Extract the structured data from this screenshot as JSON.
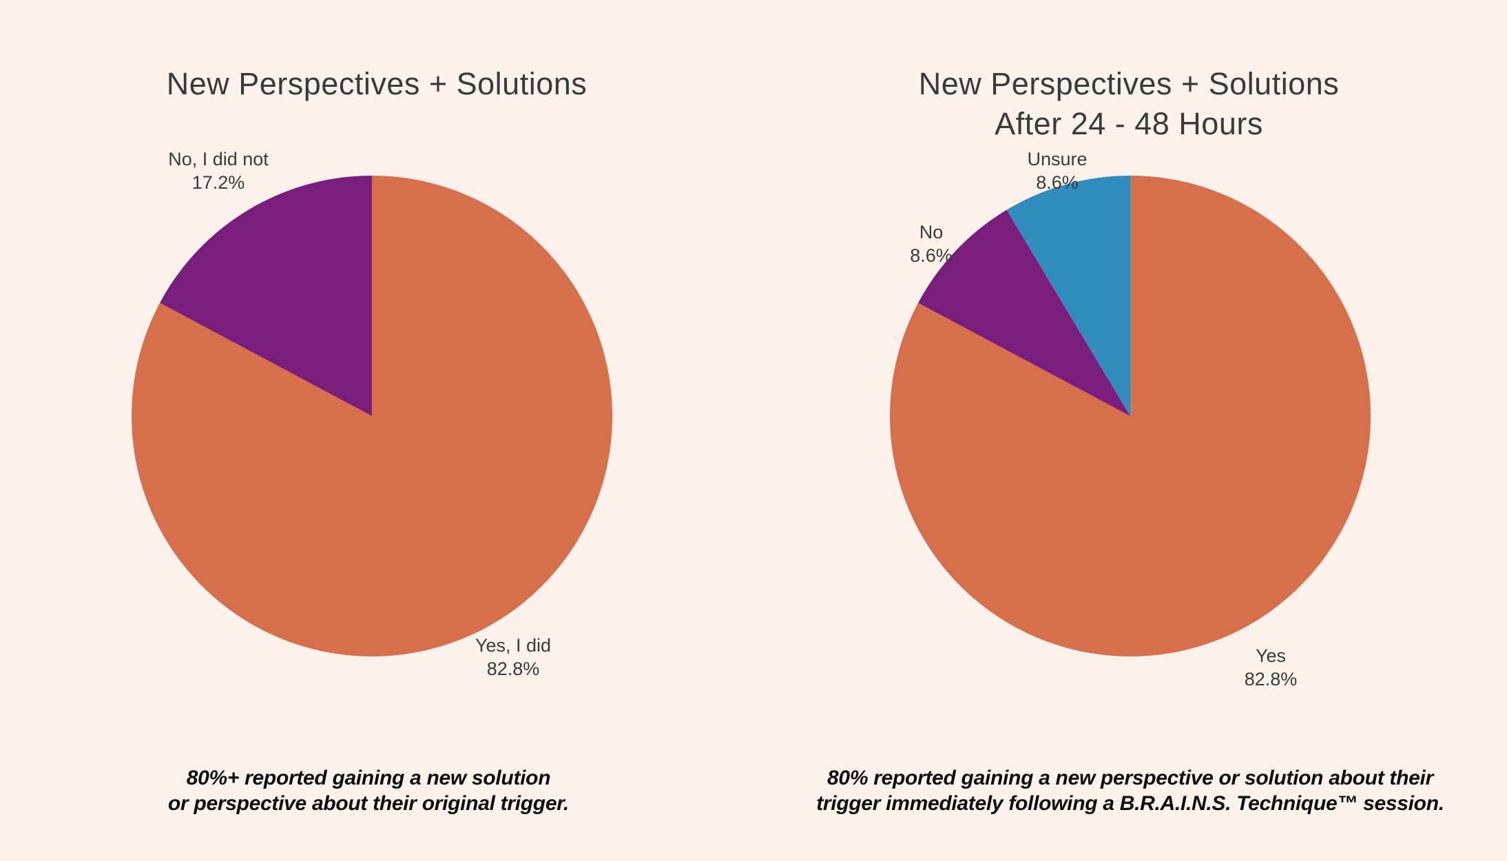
{
  "page": {
    "background_color": "#FCF2EB",
    "title_text_color": "#3A3A3A",
    "label_text_color": "#3A3A3A",
    "caption_text_color": "#0D0D0D"
  },
  "chart_data": [
    {
      "type": "pie",
      "title": "New Perspectives + Solutions",
      "title_lines": [
        "New Perspectives + Solutions"
      ],
      "unit": "%",
      "start_angle": "top",
      "direction": "clockwise",
      "labels_position": "outside",
      "legend": "none",
      "slices": [
        {
          "label": "Yes, I did",
          "value": 82.8,
          "pct_label": "82.8%",
          "color": "#D76F4D"
        },
        {
          "label": "No, I did not",
          "value": 17.2,
          "pct_label": "17.2%",
          "color": "#7A1E7E"
        }
      ],
      "caption_lines": [
        "80%+ reported gaining a new solution",
        "or perspective about their original trigger."
      ]
    },
    {
      "type": "pie",
      "title": "New Perspectives + Solutions After 24 - 48 Hours",
      "title_lines": [
        "New Perspectives + Solutions",
        "After 24 - 48 Hours"
      ],
      "unit": "%",
      "start_angle": "top",
      "direction": "clockwise",
      "labels_position": "outside",
      "legend": "none",
      "slices": [
        {
          "label": "Yes",
          "value": 82.8,
          "pct_label": "82.8%",
          "color": "#D76F4D"
        },
        {
          "label": "No",
          "value": 8.6,
          "pct_label": "8.6%",
          "color": "#7A1E7E"
        },
        {
          "label": "Unsure",
          "value": 8.6,
          "pct_label": "8.6%",
          "color": "#2F8CBC"
        }
      ],
      "caption_lines": [
        "80% reported gaining a new perspective or solution about their",
        "trigger immediately following a B.R.A.I.N.S. Technique™ session."
      ]
    }
  ]
}
